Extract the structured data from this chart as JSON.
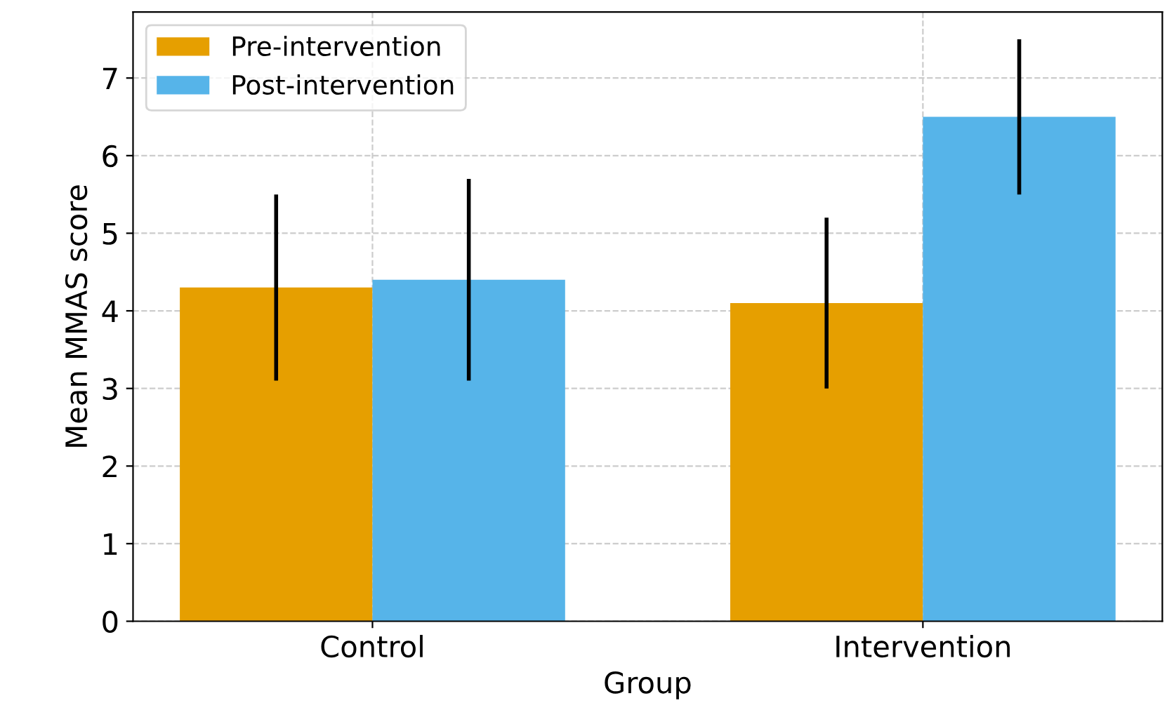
{
  "chart_data": {
    "type": "bar",
    "xlabel": "Group",
    "ylabel": "Mean MMAS score",
    "categories": [
      "Control",
      "Intervention"
    ],
    "series": [
      {
        "name": "Pre-intervention",
        "color": "#e69f00",
        "values": [
          4.3,
          4.1
        ],
        "errors": [
          1.2,
          1.1
        ]
      },
      {
        "name": "Post-intervention",
        "color": "#56b4e9",
        "values": [
          4.4,
          6.5
        ],
        "errors": [
          1.3,
          1.0
        ]
      }
    ],
    "ylim": [
      0,
      7.85
    ],
    "yticks": [
      0,
      1,
      2,
      3,
      4,
      5,
      6,
      7
    ],
    "grid": true,
    "legend": "top left"
  }
}
